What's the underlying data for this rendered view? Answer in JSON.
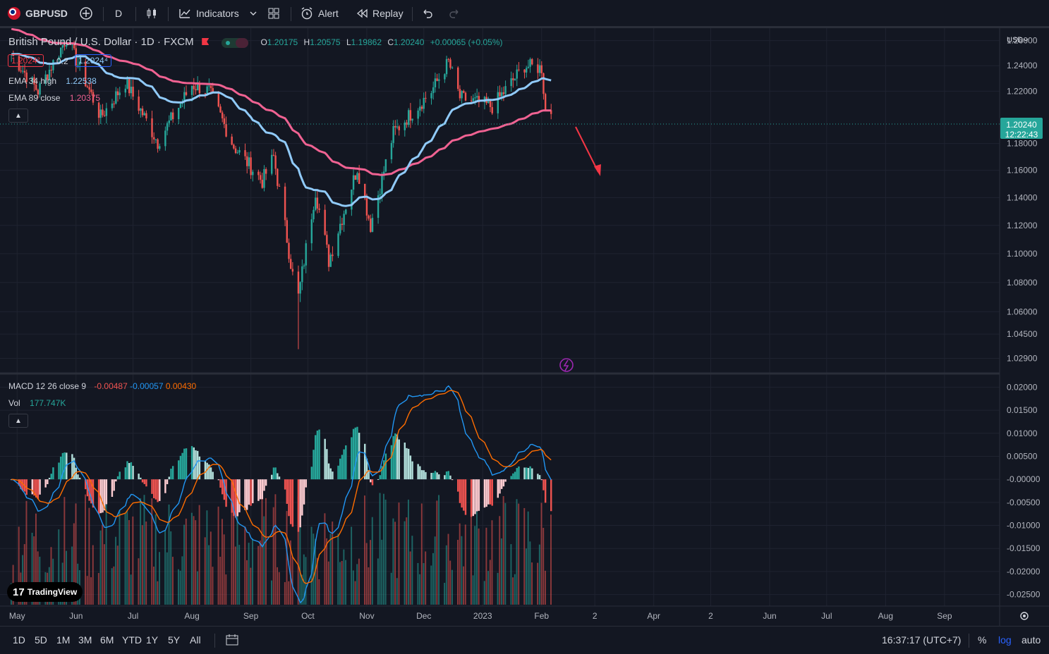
{
  "toolbar": {
    "symbol": "GBPUSD",
    "interval": "D",
    "indicators": "Indicators",
    "alert": "Alert",
    "replay": "Replay"
  },
  "legend": {
    "title": "British Pound / U.S. Dollar · 1D · FXCM",
    "o_label": "O",
    "o": "1.20175",
    "h_label": "H",
    "h": "1.20575",
    "l_label": "L",
    "l": "1.19862",
    "c_label": "C",
    "c": "1.20240",
    "change": "+0.00065 (+0.05%)",
    "bid": "1.2024²",
    "spread": "0.2",
    "ask": "1.2024⁴",
    "ema1_label": "EMA 34 high",
    "ema1_value": "1.22538",
    "ema2_label": "EMA 89 close",
    "ema2_value": "1.20375",
    "macd_label": "MACD 12 26 close 9",
    "macd_v1": "-0.00487",
    "macd_v2": "-0.00057",
    "macd_v3": "0.00430",
    "vol_label": "Vol",
    "vol_value": "177.747K"
  },
  "price_axis": {
    "currency": "USD",
    "ticks": [
      "1.26000",
      "1.24000",
      "1.22000",
      "1.18000",
      "1.16000",
      "1.14000",
      "1.12000",
      "1.10000",
      "1.08000",
      "1.06000",
      "1.04500",
      "1.02900"
    ],
    "last_price": "1.20240",
    "countdown": "12:22:43"
  },
  "macd_axis": {
    "ticks": [
      "0.02000",
      "0.01500",
      "0.01000",
      "0.00500",
      "-0.00000",
      "-0.00500",
      "-0.01000",
      "-0.01500",
      "-0.02000",
      "-0.02500"
    ]
  },
  "time_axis": {
    "ticks": [
      "May",
      "Jun",
      "Jul",
      "Aug",
      "Sep",
      "Oct",
      "Nov",
      "Dec",
      "2023",
      "Feb",
      "2",
      "Apr",
      "2",
      "Jun",
      "Jul",
      "Aug",
      "Sep"
    ]
  },
  "bottombar": {
    "ranges": [
      "1D",
      "5D",
      "1M",
      "3M",
      "6M",
      "YTD",
      "1Y",
      "5Y",
      "All"
    ],
    "clock": "16:37:17 (UTC+7)",
    "percent": "%",
    "log": "log",
    "auto": "auto"
  },
  "branding": {
    "logo_text": "TradingView"
  },
  "colors": {
    "up": "#26a69a",
    "down": "#ef5350",
    "ema_fast": "#90caf9",
    "ema_slow": "#f06292",
    "macd_line": "#2196f3",
    "signal_line": "#ff6d00",
    "accent": "#2962ff"
  },
  "chart_data": {
    "type": "candlestick",
    "symbol": "GBPUSD",
    "interval": "1D",
    "ylim": [
      1.02,
      1.27
    ],
    "y_scale": "log",
    "close_path": [
      [
        "2022-04-28",
        1.249
      ],
      [
        "2022-05-12",
        1.22
      ],
      [
        "2022-05-27",
        1.262
      ],
      [
        "2022-06-14",
        1.2
      ],
      [
        "2022-06-27",
        1.227
      ],
      [
        "2022-07-14",
        1.181
      ],
      [
        "2022-08-01",
        1.225
      ],
      [
        "2022-08-10",
        1.22
      ],
      [
        "2022-08-23",
        1.178
      ],
      [
        "2022-09-07",
        1.152
      ],
      [
        "2022-09-13",
        1.17
      ],
      [
        "2022-09-23",
        1.085
      ],
      [
        "2022-09-26",
        1.07
      ],
      [
        "2022-10-05",
        1.145
      ],
      [
        "2022-10-12",
        1.095
      ],
      [
        "2022-10-20",
        1.13
      ],
      [
        "2022-10-27",
        1.162
      ],
      [
        "2022-11-03",
        1.12
      ],
      [
        "2022-11-15",
        1.188
      ],
      [
        "2022-12-05",
        1.22
      ],
      [
        "2022-12-14",
        1.243
      ],
      [
        "2022-12-20",
        1.215
      ],
      [
        "2023-01-06",
        1.208
      ],
      [
        "2023-01-13",
        1.221
      ],
      [
        "2023-01-23",
        1.24
      ],
      [
        "2023-02-01",
        1.238
      ],
      [
        "2023-02-03",
        1.205
      ],
      [
        "2023-02-06",
        1.2024
      ]
    ],
    "ema_34_high_last": 1.22538,
    "ema_89_close_last": 1.20375,
    "macd_last": {
      "histogram": -0.00487,
      "macd": -0.00057,
      "signal": 0.0043
    },
    "volume_last": "177.747K",
    "annotation": "red arrow pointing down-right from last candle"
  }
}
